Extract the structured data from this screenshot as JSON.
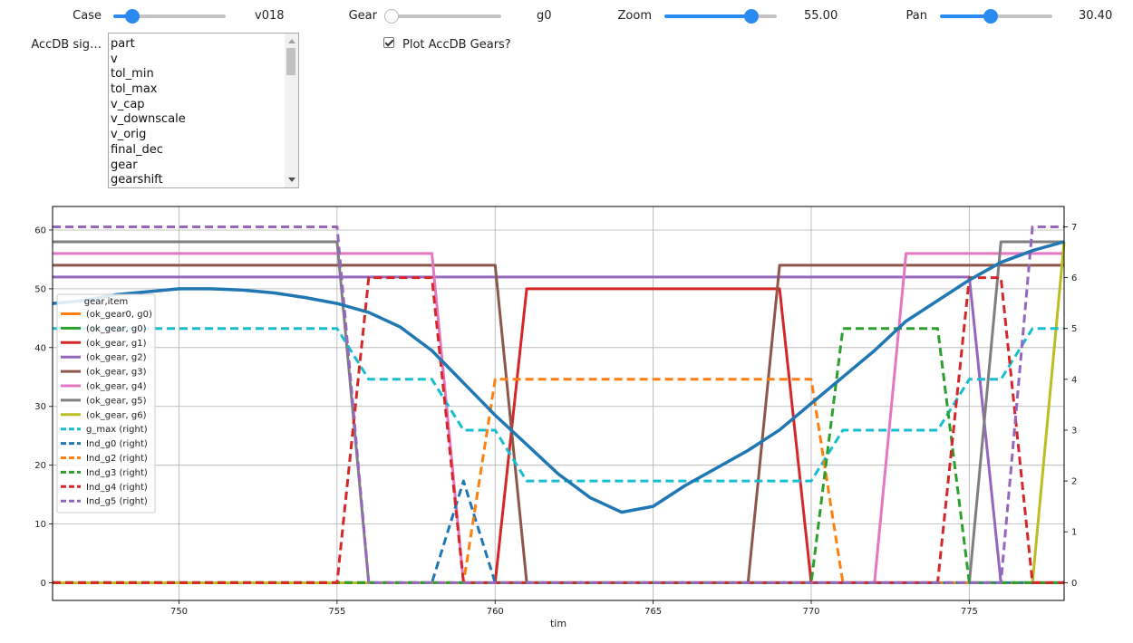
{
  "controls": {
    "case": {
      "label": "Case",
      "value_text": "v018",
      "fraction": 0.16
    },
    "gear": {
      "label": "Gear",
      "value_text": "g0",
      "fraction": 0.0
    },
    "zoom": {
      "label": "Zoom",
      "value_text": "55.00",
      "fraction": 0.77
    },
    "pan": {
      "label": "Pan",
      "value_text": "30.40",
      "fraction": 0.44
    },
    "signals": {
      "label": "AccDB sig…",
      "items": [
        "part",
        "v",
        "tol_min",
        "tol_max",
        "v_cap",
        "v_downscale",
        "v_orig",
        "final_dec",
        "gear",
        "gearshift"
      ]
    },
    "plot_gears": {
      "label": "Plot AccDB Gears?",
      "checked": true
    }
  },
  "chart_data": {
    "type": "line",
    "xlabel": "tim",
    "xlim": [
      746,
      778
    ],
    "ylim_left": [
      -3,
      64
    ],
    "ylim_right": [
      -0.35,
      7.4
    ],
    "x_ticks": [
      750,
      755,
      760,
      765,
      770,
      775
    ],
    "y_ticks_left": [
      0,
      10,
      20,
      30,
      40,
      50,
      60
    ],
    "y_ticks_right": [
      0,
      1,
      2,
      3,
      4,
      5,
      6,
      7
    ],
    "grid": true,
    "legend": {
      "title": "gear,item",
      "placement": "center-left"
    },
    "series": [
      {
        "name": "(ok_gear0, g0)",
        "axis": "left",
        "style": "solid",
        "color": "#ff7f0e",
        "points": [
          [
            746,
            0
          ],
          [
            778,
            0
          ]
        ]
      },
      {
        "name": "(ok_gear, g0)",
        "axis": "left",
        "style": "solid",
        "color": "#2ca02c",
        "points": [
          [
            746,
            0
          ],
          [
            778,
            0
          ]
        ]
      },
      {
        "name": "(ok_gear, g1)",
        "axis": "left",
        "style": "solid",
        "color": "#d62728",
        "points": [
          [
            746,
            0
          ],
          [
            760,
            0
          ],
          [
            761,
            50
          ],
          [
            769,
            50
          ],
          [
            770,
            0
          ],
          [
            778,
            0
          ]
        ]
      },
      {
        "name": "(ok_gear, g2)",
        "axis": "left",
        "style": "solid",
        "color": "#9467bd",
        "points": [
          [
            746,
            52
          ],
          [
            775,
            52
          ],
          [
            776,
            0
          ],
          [
            778,
            0
          ]
        ]
      },
      {
        "name": "(ok_gear, g3)",
        "axis": "left",
        "style": "solid",
        "color": "#8c564b",
        "points": [
          [
            746,
            54
          ],
          [
            760,
            54
          ],
          [
            761,
            0
          ],
          [
            768,
            0
          ],
          [
            769,
            54
          ],
          [
            778,
            54
          ]
        ]
      },
      {
        "name": "(ok_gear, g4)",
        "axis": "left",
        "style": "solid",
        "color": "#e377c2",
        "points": [
          [
            746,
            56
          ],
          [
            758,
            56
          ],
          [
            759,
            0
          ],
          [
            772,
            0
          ],
          [
            773,
            56
          ],
          [
            778,
            56
          ]
        ]
      },
      {
        "name": "(ok_gear, g5)",
        "axis": "left",
        "style": "solid",
        "color": "#7f7f7f",
        "points": [
          [
            746,
            58
          ],
          [
            755,
            58
          ],
          [
            756,
            0
          ],
          [
            775,
            0
          ],
          [
            776,
            58
          ],
          [
            778,
            58
          ]
        ]
      },
      {
        "name": "(ok_gear, g6)",
        "axis": "left",
        "style": "solid",
        "color": "#bcbd22",
        "points": [
          [
            746,
            0
          ],
          [
            777,
            0
          ],
          [
            778,
            58
          ]
        ]
      },
      {
        "name": "g_max (right)",
        "axis": "right",
        "style": "dashed",
        "color": "#17becf",
        "points": [
          [
            746,
            5
          ],
          [
            755,
            5
          ],
          [
            756,
            4
          ],
          [
            758,
            4
          ],
          [
            759,
            3
          ],
          [
            760,
            3
          ],
          [
            761,
            2
          ],
          [
            770,
            2
          ],
          [
            771,
            3
          ],
          [
            774,
            3
          ],
          [
            775,
            4
          ],
          [
            776,
            4
          ],
          [
            777,
            5
          ],
          [
            778,
            5
          ]
        ]
      },
      {
        "name": "Ind_g0 (right)",
        "axis": "right",
        "style": "dashed",
        "color": "#1f77b4",
        "points": [
          [
            746,
            0
          ],
          [
            758,
            0
          ],
          [
            759,
            2
          ],
          [
            760,
            0
          ],
          [
            778,
            0
          ]
        ]
      },
      {
        "name": "Ind_g2 (right)",
        "axis": "right",
        "style": "dashed",
        "color": "#ff7f0e",
        "points": [
          [
            746,
            0
          ],
          [
            759,
            0
          ],
          [
            760,
            4
          ],
          [
            770,
            4
          ],
          [
            771,
            0
          ],
          [
            778,
            0
          ]
        ]
      },
      {
        "name": "Ind_g3 (right)",
        "axis": "right",
        "style": "dashed",
        "color": "#2ca02c",
        "points": [
          [
            746,
            0
          ],
          [
            770,
            0
          ],
          [
            771,
            5
          ],
          [
            774,
            5
          ],
          [
            775,
            0
          ],
          [
            778,
            0
          ]
        ]
      },
      {
        "name": "Ind_g4 (right)",
        "axis": "right",
        "style": "dashed",
        "color": "#d62728",
        "points": [
          [
            746,
            0
          ],
          [
            755,
            0
          ],
          [
            756,
            6
          ],
          [
            758,
            6
          ],
          [
            759,
            0
          ],
          [
            774,
            0
          ],
          [
            775,
            6
          ],
          [
            776,
            6
          ],
          [
            777,
            0
          ],
          [
            778,
            0
          ]
        ]
      },
      {
        "name": "Ind_g5 (right)",
        "axis": "right",
        "style": "dashed",
        "color": "#9467bd",
        "points": [
          [
            746,
            7
          ],
          [
            755,
            7
          ],
          [
            756,
            0
          ],
          [
            776,
            0
          ],
          [
            777,
            7
          ],
          [
            778,
            7
          ]
        ]
      }
    ],
    "unlabeled_series": [
      {
        "axis": "left",
        "style": "solid",
        "color": "#1f77b4",
        "width": 3.5,
        "points": [
          [
            746,
            47.5
          ],
          [
            747,
            48
          ],
          [
            748,
            49
          ],
          [
            749,
            49.5
          ],
          [
            750,
            50
          ],
          [
            751,
            50
          ],
          [
            752,
            49.8
          ],
          [
            753,
            49.3
          ],
          [
            754,
            48.5
          ],
          [
            755,
            47.5
          ],
          [
            756,
            46
          ],
          [
            757,
            43.5
          ],
          [
            758,
            39.5
          ],
          [
            759,
            34
          ],
          [
            760,
            28.5
          ],
          [
            761,
            23.5
          ],
          [
            762,
            18.5
          ],
          [
            763,
            14.5
          ],
          [
            764,
            12
          ],
          [
            765,
            13
          ],
          [
            766,
            16.5
          ],
          [
            767,
            19.5
          ],
          [
            768,
            22.5
          ],
          [
            769,
            26
          ],
          [
            770,
            30.5
          ],
          [
            771,
            35
          ],
          [
            772,
            39.5
          ],
          [
            773,
            44.5
          ],
          [
            774,
            48
          ],
          [
            775,
            51.5
          ],
          [
            776,
            54.5
          ],
          [
            777,
            56.5
          ],
          [
            778,
            58
          ]
        ]
      }
    ]
  }
}
